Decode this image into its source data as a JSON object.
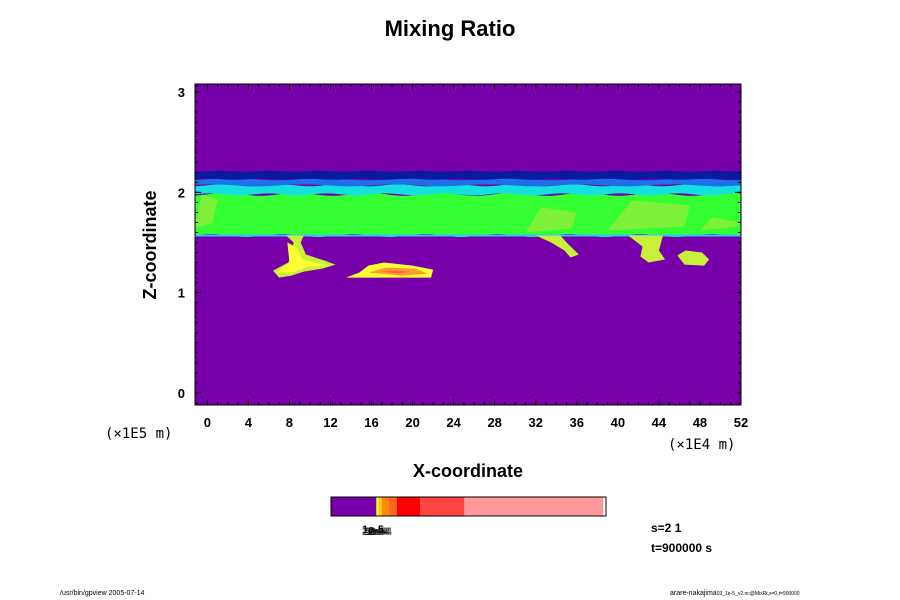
{
  "chart_data": {
    "type": "heatmap",
    "title": "Mixing Ratio",
    "xlabel": "X-coordinate",
    "ylabel": "Z-coordinate",
    "x_unit_label": "(×1E4 m)",
    "y_unit_label": "(×1E5 m)",
    "xlim": [
      -1.2,
      52
    ],
    "ylim": [
      -0.12,
      3.08
    ],
    "x_ticks": [
      0,
      4,
      8,
      12,
      16,
      20,
      24,
      28,
      32,
      36,
      40,
      44,
      48,
      52
    ],
    "y_ticks": [
      0,
      1,
      2,
      3
    ],
    "background_color": "#7700aa",
    "layers": {
      "dark_band": {
        "z_range": [
          2.13,
          2.21
        ],
        "color": "#0a1aa0"
      },
      "blue_band": {
        "z_range": [
          2.07,
          2.13
        ],
        "color": "#1f6fe8"
      },
      "cyan_band": {
        "z_range": [
          1.98,
          2.07
        ],
        "color": "#14e0e0"
      },
      "green_layer": {
        "z_range": [
          1.57,
          1.98
        ],
        "color": "#33ff33"
      },
      "light_green_patches": {
        "color": "#8cf03a"
      },
      "cyan_edge": {
        "color": "#28c8ff"
      }
    },
    "cloud_base_z": 1.57,
    "plumes": [
      {
        "color": "#c8f03a",
        "points": [
          [
            7.7,
            1.57
          ],
          [
            8.4,
            1.5
          ],
          [
            8.2,
            1.38
          ],
          [
            7.9,
            1.3
          ],
          [
            6.4,
            1.22
          ],
          [
            7.0,
            1.15
          ],
          [
            8.2,
            1.17
          ],
          [
            9.4,
            1.21
          ],
          [
            11.2,
            1.24
          ],
          [
            12.5,
            1.28
          ],
          [
            11.4,
            1.32
          ],
          [
            9.6,
            1.38
          ],
          [
            9.1,
            1.5
          ],
          [
            9.4,
            1.57
          ]
        ]
      },
      {
        "color": "#ffff33",
        "points": [
          [
            7.8,
            1.5
          ],
          [
            8.0,
            1.3
          ],
          [
            6.8,
            1.2
          ],
          [
            8.3,
            1.2
          ],
          [
            9.8,
            1.26
          ],
          [
            11.8,
            1.27
          ],
          [
            9.3,
            1.33
          ],
          [
            8.7,
            1.45
          ]
        ]
      },
      {
        "color": "#ffff33",
        "points": [
          [
            13.5,
            1.15
          ],
          [
            14.8,
            1.2
          ],
          [
            15.7,
            1.27
          ],
          [
            17.2,
            1.3
          ],
          [
            20.0,
            1.27
          ],
          [
            22.0,
            1.23
          ],
          [
            21.8,
            1.15
          ]
        ]
      },
      {
        "color": "#ff9933",
        "points": [
          [
            15.7,
            1.2
          ],
          [
            17.4,
            1.25
          ],
          [
            20.2,
            1.24
          ],
          [
            21.5,
            1.19
          ],
          [
            19.0,
            1.17
          ]
        ]
      },
      {
        "color": "#ff6633",
        "points": [
          [
            17.0,
            1.21
          ],
          [
            18.4,
            1.22
          ],
          [
            19.8,
            1.21
          ],
          [
            18.6,
            1.19
          ]
        ]
      },
      {
        "color": "#c8f03a",
        "points": [
          [
            32.0,
            1.57
          ],
          [
            33.5,
            1.5
          ],
          [
            34.8,
            1.42
          ],
          [
            35.4,
            1.35
          ],
          [
            36.2,
            1.38
          ],
          [
            35.0,
            1.5
          ],
          [
            34.4,
            1.57
          ]
        ]
      },
      {
        "color": "#c8f03a",
        "points": [
          [
            41.0,
            1.57
          ],
          [
            42.4,
            1.46
          ],
          [
            42.2,
            1.36
          ],
          [
            43.0,
            1.3
          ],
          [
            44.6,
            1.33
          ],
          [
            44.0,
            1.42
          ],
          [
            44.4,
            1.57
          ]
        ]
      },
      {
        "color": "#c8f03a",
        "points": [
          [
            45.8,
            1.37
          ],
          [
            46.5,
            1.28
          ],
          [
            48.4,
            1.27
          ],
          [
            48.9,
            1.33
          ],
          [
            48.2,
            1.4
          ],
          [
            46.6,
            1.42
          ]
        ]
      }
    ],
    "colorbar": {
      "label": "1e-5",
      "label_overlap": [
        "2e-5",
        "5e-5",
        "1e-4",
        "2e-4",
        "3e-4"
      ],
      "segments": [
        {
          "color": "#7700aa",
          "fraction": 0.165
        },
        {
          "color": "#ffff33",
          "fraction": 0.008
        },
        {
          "color": "#ffcc00",
          "fraction": 0.012
        },
        {
          "color": "#ff8800",
          "fraction": 0.025
        },
        {
          "color": "#ff6622",
          "fraction": 0.03
        },
        {
          "color": "#ff0000",
          "fraction": 0.085
        },
        {
          "color": "#ff4444",
          "fraction": 0.16
        },
        {
          "color": "#ff9999",
          "fraction": 0.505
        }
      ]
    }
  },
  "info": {
    "s_text": "s=2 1",
    "t_text": "t=900000 s"
  },
  "footer": {
    "left": "/usr/bin/gpview 2005-07-14",
    "right": "arare-nakajima",
    "right_small": "03_1e-5_v2.nc@MixRt,x=0,t=900000"
  }
}
